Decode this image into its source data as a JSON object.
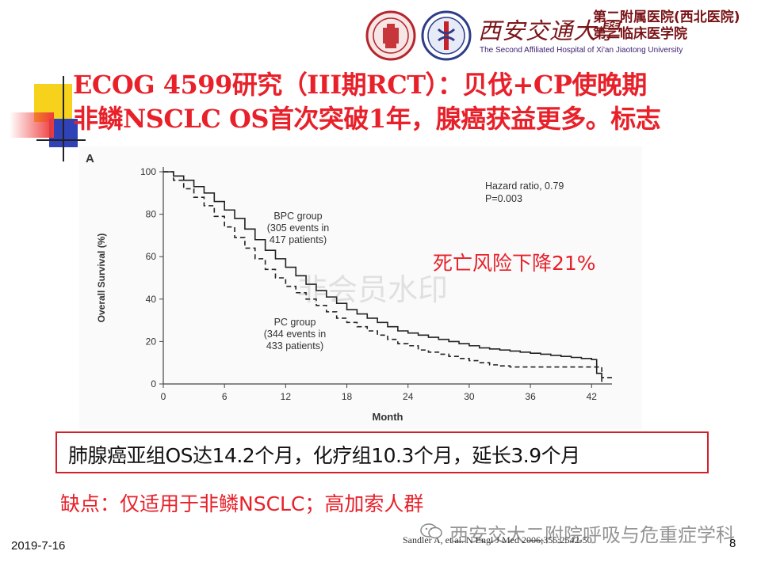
{
  "header": {
    "university_name": "西安交通大學",
    "hospital_cn_line1": "第二附属医院(西北医院)",
    "hospital_cn_line2": "第二临床医学院",
    "hospital_en": "The Second Affiliated Hospital of Xi'an Jiaotong University"
  },
  "title": {
    "line1": "ECOG 4599研究（III期RCT）：贝伐+CP使晚期",
    "line2": "非鳞NSCLC OS首次突破1年，腺癌获益更多。标志"
  },
  "chart_data": {
    "type": "line",
    "panel_label": "A",
    "xlabel": "Month",
    "ylabel": "Overall Survival (%)",
    "xlim": [
      0,
      44
    ],
    "ylim": [
      0,
      100
    ],
    "x_ticks": [
      0,
      6,
      12,
      18,
      24,
      30,
      36,
      42
    ],
    "y_ticks": [
      0,
      20,
      40,
      60,
      80,
      100
    ],
    "hazard_text": [
      "Hazard ratio, 0.79",
      "P=0.003"
    ],
    "series": [
      {
        "name": "BPC group",
        "label_lines": [
          "BPC group",
          "(305 events in",
          "417 patients)"
        ],
        "style": "solid",
        "x": [
          0,
          1,
          2,
          3,
          4,
          5,
          6,
          7,
          8,
          9,
          10,
          11,
          12,
          13,
          14,
          15,
          16,
          17,
          18,
          19,
          20,
          21,
          22,
          23,
          24,
          25,
          26,
          27,
          28,
          29,
          30,
          31,
          32,
          33,
          34,
          35,
          36,
          37,
          38,
          39,
          40,
          41,
          42,
          42.5,
          43
        ],
        "y": [
          100,
          98,
          96,
          93,
          90,
          86,
          82,
          78,
          73,
          68,
          63,
          59,
          55,
          51,
          47,
          44,
          41,
          38,
          35,
          33,
          31,
          29,
          27,
          25,
          24,
          23,
          22,
          21,
          20,
          19,
          18,
          17,
          16.5,
          16,
          15.5,
          15,
          14.5,
          14,
          13.5,
          13,
          12.5,
          12,
          11.5,
          5,
          1
        ]
      },
      {
        "name": "PC group",
        "label_lines": [
          "PC group",
          "(344 events in",
          "433 patients)"
        ],
        "style": "dashed",
        "x": [
          0,
          1,
          2,
          3,
          4,
          5,
          6,
          7,
          8,
          9,
          10,
          11,
          12,
          13,
          14,
          15,
          16,
          17,
          18,
          19,
          20,
          21,
          22,
          23,
          24,
          25,
          26,
          27,
          28,
          29,
          30,
          31,
          32,
          33,
          34,
          35,
          36,
          37,
          38,
          39,
          40,
          41,
          42,
          43,
          44
        ],
        "y": [
          100,
          96,
          92,
          88,
          84,
          79,
          74,
          69,
          64,
          59,
          54,
          50,
          46,
          43,
          40,
          37,
          34,
          31,
          29,
          27,
          25,
          23,
          21,
          19,
          18,
          16,
          15,
          14,
          13,
          12,
          11,
          10,
          9,
          8.5,
          8,
          8,
          8,
          8,
          8,
          8,
          8,
          8,
          8,
          3,
          3
        ]
      }
    ]
  },
  "annotations": {
    "risk_note": "死亡风险下降21%",
    "watermark": "非会员水印"
  },
  "result_box": {
    "text": "肺腺癌亚组OS达14.2个月，化疗组10.3个月，延长3.9个月"
  },
  "limitation": "缺点：仅适用于非鳞NSCLC；高加索人群",
  "footer": {
    "date": "2019-7-16",
    "citation": "Sandler A, et al. N Engl J Med 2006;355:2542-50",
    "page": "8",
    "account": "西安交大二附院呼吸与危重症学科"
  },
  "colors": {
    "title_red": "#e8202a",
    "box_border": "#d41f2a",
    "deco_yellow": "#f6d21c",
    "deco_blue": "#2f42b8",
    "deco_red": "#e8202a",
    "brand_maroon": "#7a1418"
  }
}
